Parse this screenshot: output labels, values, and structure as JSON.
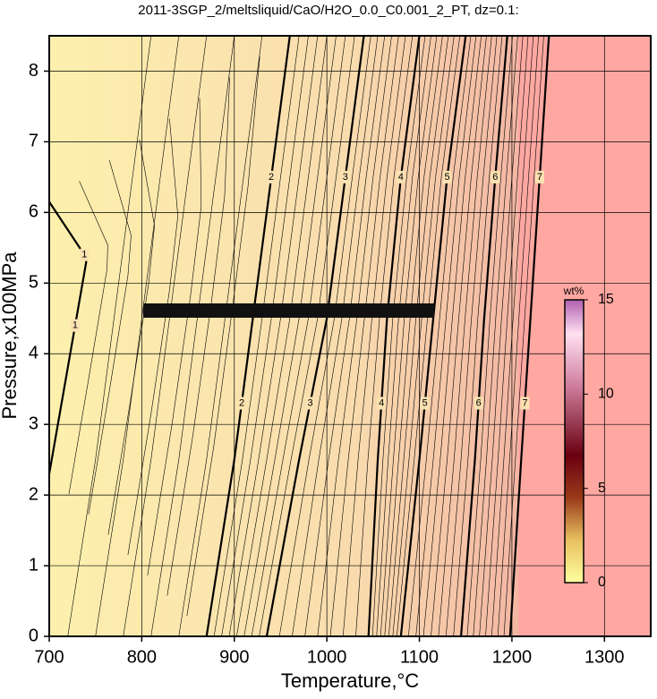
{
  "chart_data": {
    "type": "contour",
    "title": "2011-3SGP_2/meltsliquid/CaO/H2O_0.0_C0.001_2_PT, dz=0.1:",
    "x_label": "Temperature,°C",
    "y_label": "Pressure,x100MPa",
    "xlim": [
      700,
      1350
    ],
    "ylim": [
      0,
      8.5
    ],
    "xticks": [
      700,
      800,
      900,
      1000,
      1100,
      1200,
      1300
    ],
    "yticks": [
      0,
      1,
      2,
      3,
      4,
      5,
      6,
      7,
      8
    ],
    "grid": true,
    "contours": [
      {
        "level": 1,
        "x": [
          700,
          720,
          740,
          738,
          700
        ],
        "y": [
          2.3,
          3.8,
          5.3,
          5.4,
          6.15
        ]
      },
      {
        "level": 2,
        "x": [
          870,
          900,
          920,
          940,
          960
        ],
        "y": [
          0,
          2.5,
          4.5,
          6.5,
          8.5
        ]
      },
      {
        "level": 3,
        "x": [
          935,
          970,
          1000,
          1020,
          1040
        ],
        "y": [
          0,
          2.5,
          4.5,
          6.5,
          8.5
        ]
      },
      {
        "level": 4,
        "x": [
          1045,
          1055,
          1065,
          1080,
          1100
        ],
        "y": [
          0,
          2.5,
          4.5,
          6.5,
          8.5
        ]
      },
      {
        "level": 5,
        "x": [
          1080,
          1100,
          1115,
          1130,
          1150
        ],
        "y": [
          0,
          2.5,
          4.5,
          6.5,
          8.5
        ]
      },
      {
        "level": 6,
        "x": [
          1145,
          1160,
          1170,
          1182,
          1195
        ],
        "y": [
          0,
          2.5,
          4.5,
          6.5,
          8.5
        ]
      },
      {
        "level": 7,
        "x": [
          1198,
          1210,
          1220,
          1230,
          1240
        ],
        "y": [
          0,
          2.5,
          4.5,
          6.5,
          8.5
        ]
      }
    ],
    "colorbar": {
      "label": "wt%",
      "lim": [
        0,
        15
      ],
      "ticks": [
        0,
        5,
        10,
        15
      ]
    }
  }
}
